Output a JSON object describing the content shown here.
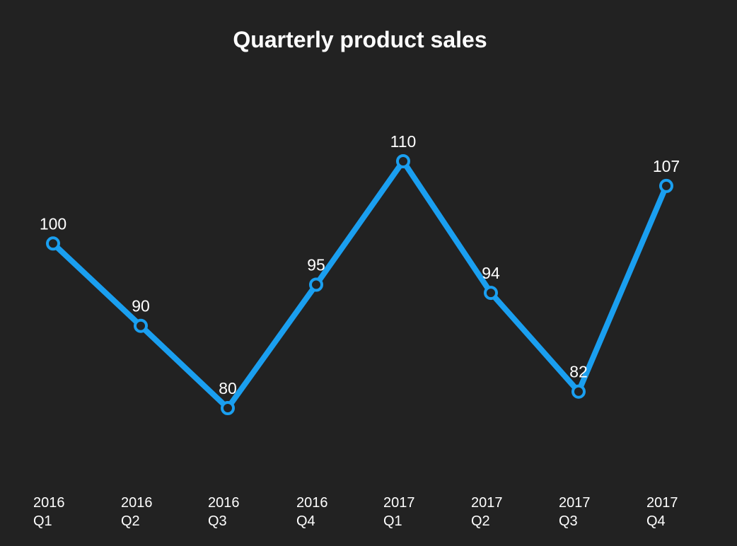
{
  "chart_data": {
    "type": "line",
    "title": "Quarterly product sales",
    "categories": [
      "2016 Q1",
      "2016 Q2",
      "2016 Q3",
      "2016 Q4",
      "2017 Q1",
      "2017 Q2",
      "2017 Q3",
      "2017 Q4"
    ],
    "category_lines": [
      [
        "2016",
        "Q1"
      ],
      [
        "2016",
        "Q2"
      ],
      [
        "2016",
        "Q3"
      ],
      [
        "2016",
        "Q4"
      ],
      [
        "2017",
        "Q1"
      ],
      [
        "2017",
        "Q2"
      ],
      [
        "2017",
        "Q3"
      ],
      [
        "2017",
        "Q4"
      ]
    ],
    "series": [
      {
        "values": [
          100,
          90,
          80,
          95,
          110,
          94,
          82,
          107
        ],
        "color": "#1a9ff0"
      }
    ],
    "data_labels": true,
    "grid": false,
    "y_axis_visible": false,
    "background": "#222222",
    "text_color": "#ffffff"
  }
}
